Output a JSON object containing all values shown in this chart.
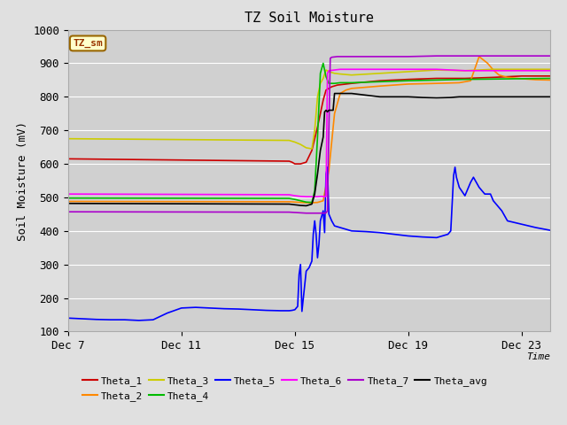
{
  "title": "TZ Soil Moisture",
  "xlabel": "Time",
  "ylabel": "Soil Moisture (mV)",
  "ylim": [
    100,
    1000
  ],
  "xlim": [
    0,
    17
  ],
  "xtick_positions": [
    0,
    4,
    8,
    12,
    16
  ],
  "xtick_labels": [
    "Dec 7",
    "Dec 11",
    "Dec 15",
    "Dec 19",
    "Dec 23"
  ],
  "ytick_positions": [
    100,
    200,
    300,
    400,
    500,
    600,
    700,
    800,
    900,
    1000
  ],
  "fig_bg_color": "#e0e0e0",
  "plot_bg_color": "#d0d0d0",
  "legend_box_color": "#ffffcc",
  "legend_box_edge": "#996600",
  "label_text": "TZ_sm",
  "series": {
    "Theta_1": {
      "color": "#cc0000",
      "points": [
        [
          0,
          615
        ],
        [
          7.8,
          608
        ],
        [
          7.9,
          605
        ],
        [
          8.0,
          600
        ],
        [
          8.2,
          600
        ],
        [
          8.4,
          605
        ],
        [
          8.6,
          640
        ],
        [
          8.8,
          710
        ],
        [
          9.0,
          790
        ],
        [
          9.1,
          820
        ],
        [
          9.3,
          830
        ],
        [
          9.5,
          835
        ],
        [
          10,
          840
        ],
        [
          11,
          848
        ],
        [
          12,
          852
        ],
        [
          13,
          855
        ],
        [
          14,
          855
        ],
        [
          15,
          858
        ],
        [
          16,
          862
        ],
        [
          17,
          862
        ]
      ]
    },
    "Theta_2": {
      "color": "#ff8800",
      "points": [
        [
          0,
          488
        ],
        [
          7.8,
          487
        ],
        [
          8.0,
          486
        ],
        [
          8.2,
          485
        ],
        [
          8.4,
          484
        ],
        [
          8.6,
          484
        ],
        [
          8.8,
          485
        ],
        [
          9.0,
          490
        ],
        [
          9.2,
          580
        ],
        [
          9.4,
          750
        ],
        [
          9.6,
          810
        ],
        [
          9.8,
          820
        ],
        [
          10,
          825
        ],
        [
          11,
          832
        ],
        [
          12,
          838
        ],
        [
          13,
          840
        ],
        [
          13.8,
          842
        ],
        [
          14.2,
          848
        ],
        [
          14.5,
          920
        ],
        [
          14.8,
          900
        ],
        [
          15.0,
          880
        ],
        [
          15.2,
          865
        ],
        [
          15.5,
          858
        ],
        [
          16,
          854
        ],
        [
          16.5,
          851
        ],
        [
          17,
          850
        ]
      ]
    },
    "Theta_3": {
      "color": "#cccc00",
      "points": [
        [
          0,
          675
        ],
        [
          7.8,
          670
        ],
        [
          8.0,
          665
        ],
        [
          8.2,
          658
        ],
        [
          8.4,
          648
        ],
        [
          8.6,
          645
        ],
        [
          8.7,
          700
        ],
        [
          8.8,
          800
        ],
        [
          8.9,
          840
        ],
        [
          9.0,
          855
        ],
        [
          9.1,
          880
        ],
        [
          9.2,
          875
        ],
        [
          9.4,
          870
        ],
        [
          9.6,
          868
        ],
        [
          10,
          865
        ],
        [
          11,
          870
        ],
        [
          12,
          875
        ],
        [
          13,
          880
        ],
        [
          14,
          878
        ],
        [
          15,
          882
        ],
        [
          16,
          882
        ],
        [
          17,
          882
        ]
      ]
    },
    "Theta_4": {
      "color": "#00bb00",
      "points": [
        [
          0,
          498
        ],
        [
          7.8,
          497
        ],
        [
          8.0,
          494
        ],
        [
          8.2,
          490
        ],
        [
          8.4,
          486
        ],
        [
          8.6,
          485
        ],
        [
          8.7,
          520
        ],
        [
          8.8,
          680
        ],
        [
          8.9,
          870
        ],
        [
          9.0,
          900
        ],
        [
          9.1,
          860
        ],
        [
          9.2,
          840
        ],
        [
          9.4,
          840
        ],
        [
          9.6,
          842
        ],
        [
          10,
          842
        ],
        [
          11,
          845
        ],
        [
          12,
          848
        ],
        [
          13,
          850
        ],
        [
          14,
          852
        ],
        [
          15,
          853
        ],
        [
          16,
          854
        ],
        [
          17,
          855
        ]
      ]
    },
    "Theta_5": {
      "color": "#0000ff",
      "points": [
        [
          0,
          140
        ],
        [
          0.5,
          138
        ],
        [
          1,
          136
        ],
        [
          1.5,
          135
        ],
        [
          2,
          135
        ],
        [
          2.5,
          133
        ],
        [
          3,
          135
        ],
        [
          3.5,
          155
        ],
        [
          4,
          170
        ],
        [
          4.5,
          172
        ],
        [
          5,
          170
        ],
        [
          5.5,
          168
        ],
        [
          6,
          167
        ],
        [
          6.5,
          165
        ],
        [
          7,
          163
        ],
        [
          7.5,
          162
        ],
        [
          7.8,
          162
        ],
        [
          7.9,
          163
        ],
        [
          8.0,
          165
        ],
        [
          8.1,
          175
        ],
        [
          8.15,
          270
        ],
        [
          8.2,
          300
        ],
        [
          8.25,
          160
        ],
        [
          8.3,
          200
        ],
        [
          8.4,
          280
        ],
        [
          8.5,
          290
        ],
        [
          8.6,
          310
        ],
        [
          8.65,
          390
        ],
        [
          8.7,
          430
        ],
        [
          8.75,
          390
        ],
        [
          8.8,
          320
        ],
        [
          8.85,
          360
        ],
        [
          8.9,
          430
        ],
        [
          9.0,
          460
        ],
        [
          9.05,
          395
        ],
        [
          9.1,
          570
        ],
        [
          9.15,
          590
        ],
        [
          9.2,
          450
        ],
        [
          9.3,
          430
        ],
        [
          9.4,
          415
        ],
        [
          9.6,
          410
        ],
        [
          9.8,
          405
        ],
        [
          10,
          400
        ],
        [
          10.5,
          398
        ],
        [
          11,
          395
        ],
        [
          11.5,
          390
        ],
        [
          12,
          385
        ],
        [
          12.5,
          382
        ],
        [
          13,
          380
        ],
        [
          13.2,
          385
        ],
        [
          13.4,
          390
        ],
        [
          13.5,
          400
        ],
        [
          13.6,
          565
        ],
        [
          13.65,
          590
        ],
        [
          13.7,
          560
        ],
        [
          13.8,
          530
        ],
        [
          14,
          505
        ],
        [
          14.2,
          545
        ],
        [
          14.3,
          560
        ],
        [
          14.4,
          545
        ],
        [
          14.5,
          530
        ],
        [
          14.7,
          510
        ],
        [
          14.9,
          510
        ],
        [
          15,
          490
        ],
        [
          15.3,
          460
        ],
        [
          15.5,
          430
        ],
        [
          16,
          420
        ],
        [
          16.5,
          410
        ],
        [
          17,
          402
        ]
      ]
    },
    "Theta_6": {
      "color": "#ff00ff",
      "points": [
        [
          0,
          510
        ],
        [
          7.8,
          508
        ],
        [
          8.0,
          505
        ],
        [
          8.2,
          503
        ],
        [
          8.4,
          502
        ],
        [
          8.6,
          502
        ],
        [
          8.7,
          502
        ],
        [
          8.8,
          502
        ],
        [
          8.9,
          503
        ],
        [
          9.0,
          503
        ],
        [
          9.05,
          502
        ],
        [
          9.1,
          503
        ],
        [
          9.15,
          870
        ],
        [
          9.2,
          878
        ],
        [
          9.4,
          880
        ],
        [
          9.6,
          882
        ],
        [
          10,
          882
        ],
        [
          11,
          882
        ],
        [
          12,
          882
        ],
        [
          13,
          882
        ],
        [
          14,
          878
        ],
        [
          15,
          878
        ],
        [
          16,
          878
        ],
        [
          17,
          878
        ]
      ]
    },
    "Theta_7": {
      "color": "#aa00cc",
      "points": [
        [
          0,
          457
        ],
        [
          7.8,
          456
        ],
        [
          8.0,
          455
        ],
        [
          8.2,
          454
        ],
        [
          8.4,
          453
        ],
        [
          8.6,
          453
        ],
        [
          8.8,
          453
        ],
        [
          9.0,
          453
        ],
        [
          9.05,
          453
        ],
        [
          9.1,
          454
        ],
        [
          9.15,
          460
        ],
        [
          9.2,
          700
        ],
        [
          9.25,
          915
        ],
        [
          9.3,
          918
        ],
        [
          9.5,
          920
        ],
        [
          10,
          920
        ],
        [
          11,
          920
        ],
        [
          12,
          920
        ],
        [
          13,
          922
        ],
        [
          14,
          922
        ],
        [
          15,
          922
        ],
        [
          16,
          922
        ],
        [
          17,
          922
        ]
      ]
    },
    "Theta_avg": {
      "color": "#000000",
      "points": [
        [
          0,
          482
        ],
        [
          7.8,
          480
        ],
        [
          8.0,
          478
        ],
        [
          8.2,
          476
        ],
        [
          8.4,
          475
        ],
        [
          8.6,
          480
        ],
        [
          8.7,
          510
        ],
        [
          8.8,
          570
        ],
        [
          8.9,
          640
        ],
        [
          9.0,
          680
        ],
        [
          9.05,
          755
        ],
        [
          9.1,
          760
        ],
        [
          9.15,
          755
        ],
        [
          9.2,
          760
        ],
        [
          9.3,
          760
        ],
        [
          9.35,
          760
        ],
        [
          9.4,
          810
        ],
        [
          9.5,
          810
        ],
        [
          10,
          810
        ],
        [
          10.5,
          805
        ],
        [
          11,
          800
        ],
        [
          11.5,
          800
        ],
        [
          12,
          800
        ],
        [
          12.5,
          798
        ],
        [
          13,
          797
        ],
        [
          13.5,
          798
        ],
        [
          13.8,
          800
        ],
        [
          14,
          800
        ],
        [
          14.5,
          800
        ],
        [
          15,
          800
        ],
        [
          16,
          800
        ],
        [
          17,
          800
        ]
      ]
    }
  }
}
